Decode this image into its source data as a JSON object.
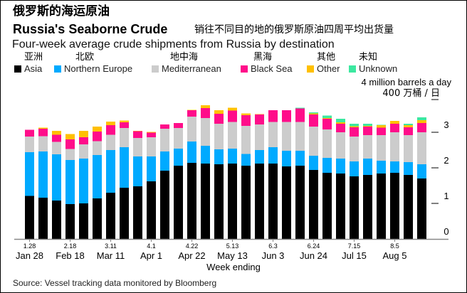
{
  "title_cn": "俄罗斯的海运原油",
  "title_en": "Russia's Seaborne Crude",
  "title_sub_cn": "销往不同目的地的俄罗斯原油四周平均出货量",
  "subtitle": "Four-week average crude shipments from Russia by destination",
  "unit_en": "4 million barrels a day",
  "unit_cn": "400 万桶 / 日",
  "xlabel": "Week ending",
  "source": "Source: Vessel tracking data monitored by Bloomberg",
  "legend": [
    {
      "en": "Asia",
      "cn": "亚洲",
      "color": "#000000"
    },
    {
      "en": "Northern Europe",
      "cn": "北欧",
      "color": "#00aaff"
    },
    {
      "en": "Mediterranean",
      "cn": "地中海",
      "color": "#cccccc"
    },
    {
      "en": "Black Sea",
      "cn": "黑海",
      "color": "#ff0d8a"
    },
    {
      "en": "Other",
      "cn": "其他",
      "color": "#ffc000"
    },
    {
      "en": "Unknown",
      "cn": "未知",
      "color": "#3ce8a0"
    }
  ],
  "chart_data": {
    "type": "bar",
    "stacked": true,
    "title": "Russia's Seaborne Crude",
    "xlabel": "Week ending",
    "ylabel": "million barrels a day",
    "ylim": [
      0,
      4
    ],
    "yticks": [
      0,
      1,
      2,
      3
    ],
    "weeks": 30,
    "tick_labels": [
      {
        "index": 0,
        "short": "1.28",
        "label": "Jan 28"
      },
      {
        "index": 3,
        "short": "2.18",
        "label": "Feb 18"
      },
      {
        "index": 6,
        "short": "3.11",
        "label": "Mar 11"
      },
      {
        "index": 9,
        "short": "4.1",
        "label": "Apr 1"
      },
      {
        "index": 12,
        "short": "4.22",
        "label": "Apr 22"
      },
      {
        "index": 15,
        "short": "5.13",
        "label": "May 13"
      },
      {
        "index": 18,
        "short": "6.3",
        "label": "Jun 3"
      },
      {
        "index": 21,
        "short": "6.24",
        "label": "Jun 24"
      },
      {
        "index": 24,
        "short": "7.15",
        "label": "Jul 15"
      },
      {
        "index": 27,
        "short": "8.5",
        "label": "Aug 5"
      }
    ],
    "series": [
      {
        "name": "Asia",
        "values": [
          1.21,
          1.16,
          1.08,
          0.98,
          1.0,
          1.14,
          1.3,
          1.44,
          1.48,
          1.62,
          1.92,
          2.06,
          2.14,
          2.12,
          2.1,
          2.12,
          2.06,
          2.12,
          2.12,
          2.04,
          2.06,
          1.94,
          1.86,
          1.84,
          1.76,
          1.8,
          1.84,
          1.86,
          1.8,
          1.7
        ]
      },
      {
        "name": "Northern Europe",
        "values": [
          1.23,
          1.3,
          1.3,
          1.24,
          1.26,
          1.22,
          1.2,
          1.14,
          0.84,
          0.7,
          0.54,
          0.48,
          0.6,
          0.5,
          0.42,
          0.42,
          0.33,
          0.38,
          0.46,
          0.44,
          0.42,
          0.4,
          0.42,
          0.42,
          0.42,
          0.46,
          0.36,
          0.32,
          0.36,
          0.4
        ]
      },
      {
        "name": "Mediterranean",
        "values": [
          0.44,
          0.43,
          0.35,
          0.31,
          0.4,
          0.39,
          0.43,
          0.54,
          0.52,
          0.54,
          0.64,
          0.58,
          0.7,
          0.78,
          0.72,
          0.75,
          0.79,
          0.72,
          0.71,
          0.81,
          0.81,
          0.82,
          0.8,
          0.74,
          0.7,
          0.66,
          0.72,
          0.82,
          0.76,
          0.9
        ]
      },
      {
        "name": "Black Sea",
        "values": [
          0.19,
          0.21,
          0.2,
          0.27,
          0.2,
          0.27,
          0.27,
          0.16,
          0.19,
          0.13,
          0.12,
          0.14,
          0.18,
          0.28,
          0.28,
          0.32,
          0.3,
          0.28,
          0.33,
          0.33,
          0.38,
          0.34,
          0.3,
          0.24,
          0.26,
          0.24,
          0.21,
          0.24,
          0.22,
          0.26
        ]
      },
      {
        "name": "Other",
        "values": [
          0,
          0.03,
          0.11,
          0.15,
          0.18,
          0.14,
          0.1,
          0.05,
          0.01,
          0.02,
          0,
          0,
          0.01,
          0.08,
          0.1,
          0.08,
          0.05,
          0.01,
          0,
          0,
          0,
          0.03,
          0.02,
          0.04,
          0.03,
          0.02,
          0.07,
          0.08,
          0.06,
          0.08
        ]
      },
      {
        "name": "Unknown",
        "values": [
          0,
          0,
          0,
          0,
          0,
          0,
          0,
          0,
          0,
          0,
          0,
          0,
          0,
          0,
          0,
          0,
          0,
          0,
          0,
          0,
          0.02,
          0.03,
          0.07,
          0.1,
          0.07,
          0.06,
          0.01,
          0,
          0.04,
          0.08
        ]
      }
    ]
  }
}
